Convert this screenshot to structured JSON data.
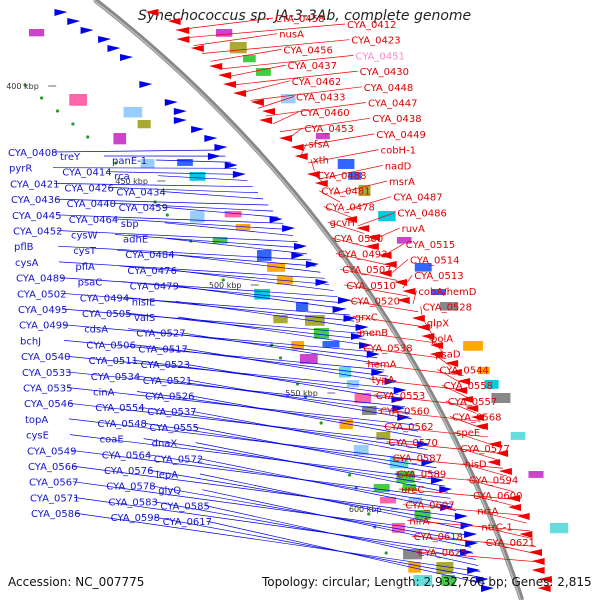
{
  "title": "Synechococcus sp. JA-3-3Ab, complete genome",
  "footer": {
    "accession": "Accession: NC_007775",
    "topology": "Topology: circular; Length: 2,932,766 bp; Genes: 2,815"
  },
  "colors": {
    "plus_strand": "#0000ee",
    "minus_strand": "#ee0000",
    "backbone": "#888888",
    "highlight_label": "#ff88cc",
    "tick": "#2a9a2a"
  },
  "kbp_ticks": [
    "400 kbp",
    "450 kbp",
    "500 kbp",
    "550 kbp",
    "600 kbp"
  ],
  "blue_labels": [
    "CYA_0408",
    "treY",
    "panE-1",
    "pyrR",
    "CYA_0414",
    "rca",
    "CYA_0421",
    "CYA_0426",
    "CYA_0434",
    "CYA_0436",
    "CYA_0440",
    "CYA_0459",
    "CYA_0445",
    "CYA_0464",
    "sbp",
    "CYA_0452",
    "cysW",
    "adhE",
    "pflB",
    "cysT",
    "CYA_0484",
    "cysA",
    "pflA",
    "CYA_0476",
    "CYA_0489",
    "psaC",
    "CYA_0479",
    "CYA_0502",
    "CYA_0494",
    "hisIE",
    "CYA_0495",
    "CYA_0505",
    "valS",
    "CYA_0499",
    "cdsA",
    "CYA_0527",
    "bchJ",
    "CYA_0506",
    "CYA_0517",
    "CYA_0540",
    "CYA_0511",
    "CYA_0523",
    "CYA_0533",
    "CYA_0534",
    "CYA_0521",
    "CYA_0535",
    "cinA",
    "CYA_0526",
    "CYA_0546",
    "CYA_0554",
    "CYA_0537",
    "topA",
    "CYA_0548",
    "CYA_0555",
    "cysE",
    "coaE",
    "dnaX",
    "CYA_0549",
    "CYA_0564",
    "CYA_0572",
    "CYA_0566",
    "CYA_0576",
    "lepA",
    "CYA_0567",
    "CYA_0578",
    "glyQ",
    "CYA_0571",
    "CYA_0583",
    "CYA_0585",
    "CYA_0586",
    "CYA_0598",
    "CYA_0617"
  ],
  "red_labels": [
    "CYA_0458",
    "CYA_0412",
    "nusA",
    "CYA_0423",
    "CYA_0456",
    "CYA_0451",
    "CYA_0437",
    "CYA_0430",
    "CYA_0462",
    "CYA_0448",
    "CYA_0433",
    "CYA_0447",
    "CYA_0460",
    "CYA_0438",
    "CYA_0453",
    "CYA_0449",
    "sfsA",
    "cobH-1",
    "xth",
    "nadD",
    "CYA_0488",
    "msrA",
    "CYA_0481",
    "CYA_0487",
    "CYA_0478",
    "CYA_0486",
    "gcvH",
    "ruvA",
    "CYA_0500",
    "CYA_0515",
    "CYA_0493",
    "CYA_0514",
    "CYA_0507",
    "CYA_0513",
    "CYA_0510",
    "cobA/hemD",
    "CYA_0520",
    "CYA_0528",
    "grxC",
    "glpX",
    "menB",
    "polA",
    "CYA_0538",
    "psaD",
    "hemA",
    "CYA_0544",
    "typA",
    "CYA_0558",
    "CYA_0553",
    "CYA_0557",
    "CYA_0560",
    "CYA_0568",
    "CYA_0562",
    "speE",
    "CYA_0570",
    "CYA_0577",
    "CYA_0587",
    "hisD",
    "CYA_0589",
    "CYA_0594",
    "ureC",
    "CYA_0600",
    "CYA_0607",
    "nrtA",
    "nirA",
    "ntrC-1",
    "CYA_0618",
    "CYA_0621",
    "CYA_0625"
  ]
}
